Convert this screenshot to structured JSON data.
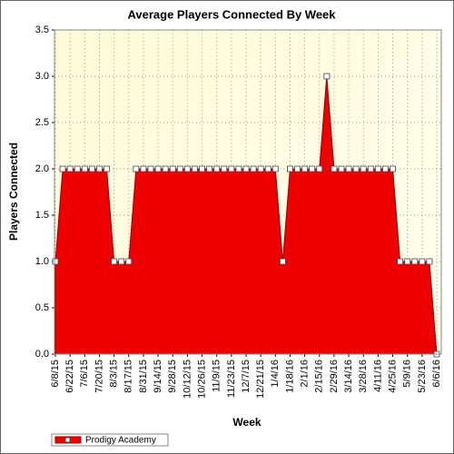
{
  "chart_data": {
    "type": "area",
    "title": "Average Players Connected By Week",
    "x_label": "Week",
    "y_label": "Players Connected",
    "categories": [
      "6/8/15",
      null,
      "6/22/15",
      null,
      "7/6/15",
      null,
      "7/20/15",
      null,
      "8/3/15",
      null,
      "8/17/15",
      null,
      "8/31/15",
      null,
      "9/14/15",
      null,
      "9/28/15",
      null,
      "10/12/15",
      null,
      "10/26/15",
      null,
      "11/9/15",
      null,
      "11/23/15",
      null,
      "12/7/15",
      null,
      "12/21/15",
      null,
      "1/4/16",
      null,
      "1/18/16",
      null,
      "2/1/16",
      null,
      "2/15/16",
      null,
      "2/29/16",
      null,
      "3/14/16",
      null,
      "3/28/16",
      null,
      "4/11/16",
      null,
      "4/25/16",
      null,
      "5/9/16",
      null,
      "5/23/16",
      null,
      "6/6/16"
    ],
    "series": [
      {
        "name": "Prodigy Academy",
        "color": "#ee0000",
        "values": [
          1,
          2,
          2,
          2,
          2,
          2,
          2,
          2,
          1,
          1,
          1,
          2,
          2,
          2,
          2,
          2,
          2,
          2,
          2,
          2,
          2,
          2,
          2,
          2,
          2,
          2,
          2,
          2,
          2,
          2,
          2,
          1,
          2,
          2,
          2,
          2,
          2,
          3,
          2,
          2,
          2,
          2,
          2,
          2,
          2,
          2,
          2,
          1,
          1,
          1,
          1,
          1,
          0
        ]
      }
    ],
    "ylim": [
      0,
      3.5
    ],
    "yticks": [
      {
        "value": 0,
        "label": "0.0"
      },
      0.5,
      {
        "value": 1,
        "label": "1.0"
      },
      1.5,
      {
        "value": 2,
        "label": "2.0"
      },
      2.5,
      {
        "value": 3,
        "label": "3.0"
      },
      3.5
    ],
    "grid": true,
    "legend": "bottom-left"
  }
}
